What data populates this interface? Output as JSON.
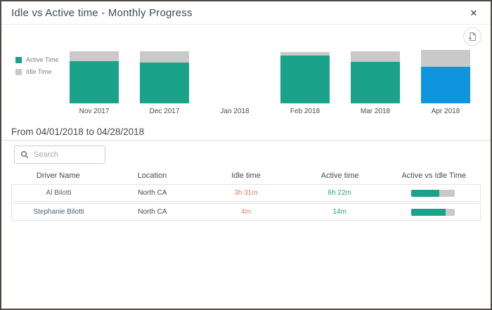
{
  "window": {
    "title": "Idle vs Active time - Monthly Progress",
    "close_glyph": "✕"
  },
  "toolbar": {
    "export_icon": "export-report-icon"
  },
  "chart_data": {
    "type": "bar",
    "stacked": true,
    "title": "",
    "xlabel": "",
    "ylabel": "",
    "axes_hidden": true,
    "legend_position": "left",
    "categories": [
      "Nov 2017",
      "Dec 2017",
      "Jan 2018",
      "Feb 2018",
      "Mar 2018",
      "Apr 2018"
    ],
    "series": [
      {
        "name": "Active Time",
        "color": "#1aa28a",
        "values": [
          75,
          72,
          0,
          85,
          74,
          65
        ]
      },
      {
        "name": "Idle Time",
        "color": "#c9c9c9",
        "values": [
          17,
          20,
          0,
          6,
          19,
          30
        ]
      }
    ],
    "ylim": [
      0,
      100
    ],
    "highlight": {
      "category_index": 5,
      "series": "Active Time",
      "color": "#0e95dd",
      "meaning": "selected month"
    }
  },
  "period": {
    "label": "From 04/01/2018 to 04/28/2018"
  },
  "search": {
    "placeholder": "Search",
    "value": ""
  },
  "table": {
    "columns": [
      "Driver Name",
      "Location",
      "Idle time",
      "Active time",
      "Active vs Idle Time"
    ],
    "rows": [
      {
        "driver": "Al Bilotti",
        "location": "North CA",
        "idle": "3h 31m",
        "active": "6h 22m",
        "active_pct": 64.5
      },
      {
        "driver": "Stephanie Bilotti",
        "location": "North CA",
        "idle": "4m",
        "active": "14m",
        "active_pct": 77.8
      }
    ]
  },
  "colors": {
    "active": "#1aa28a",
    "idle": "#c9c9c9",
    "highlight": "#0e95dd",
    "idle_text": "#e07b5a",
    "active_text": "#25a28d"
  }
}
